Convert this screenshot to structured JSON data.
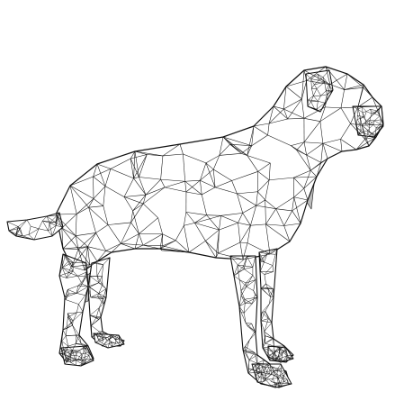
{
  "scene": {
    "subject": "dog-wireframe-mesh",
    "colors": {
      "background": "#ffffff",
      "face_fill": "#ffffff",
      "shade_fill": "#d9d9d9",
      "dark_shade_fill": "#bdbdbd",
      "edge_stroke": "#111111"
    }
  }
}
